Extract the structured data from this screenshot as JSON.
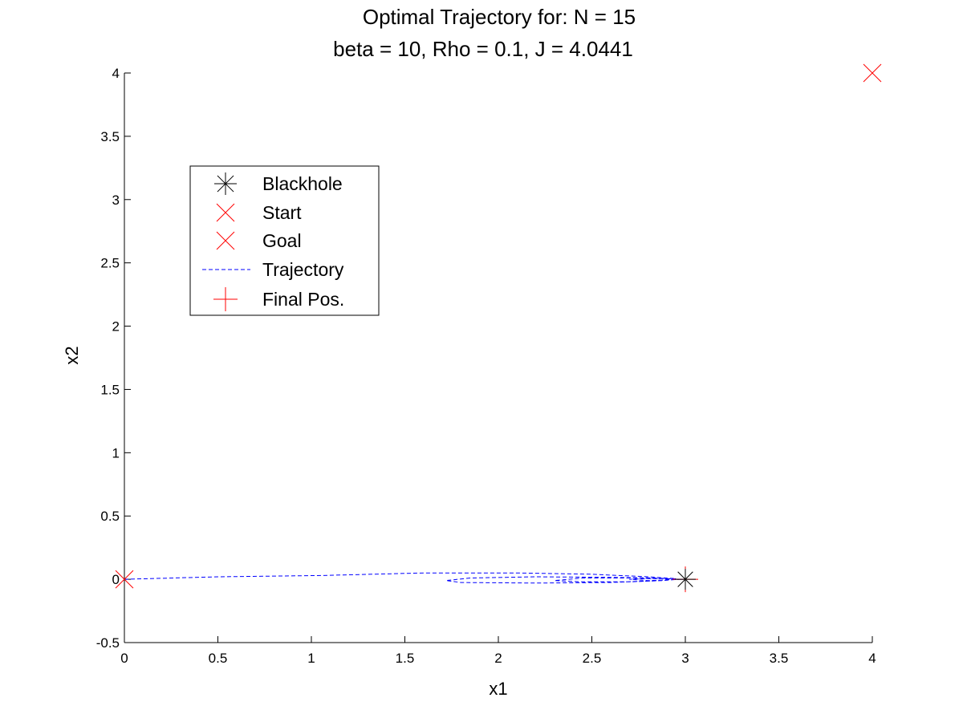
{
  "chart_data": {
    "type": "line",
    "title": "Optimal Trajectory for:  N = 15",
    "subtitle": "beta = 10, Rho = 0.1, J = 4.0441",
    "xlabel": "x1",
    "ylabel": "x2",
    "xlim": [
      0,
      4
    ],
    "ylim": [
      -0.5,
      4
    ],
    "xticks": [
      "0",
      "0.5",
      "1",
      "1.5",
      "2",
      "2.5",
      "3",
      "3.5",
      "4"
    ],
    "yticks": [
      "-0.5",
      "0",
      "0.5",
      "1",
      "1.5",
      "2",
      "2.5",
      "3",
      "3.5",
      "4"
    ],
    "grid": false,
    "legend_position": "upper-left",
    "legend": [
      {
        "label": "Blackhole",
        "marker": "asterisk",
        "color": "#000000"
      },
      {
        "label": "Start",
        "marker": "x",
        "color": "#ff0000"
      },
      {
        "label": "Goal",
        "marker": "x",
        "color": "#ff0000"
      },
      {
        "label": "Trajectory",
        "marker": "dashed-line",
        "color": "#0000ff"
      },
      {
        "label": "Final Pos.",
        "marker": "plus",
        "color": "#ff0000"
      }
    ],
    "blackhole": {
      "x": 3,
      "y": 0
    },
    "start": {
      "x": 0,
      "y": 0
    },
    "goal": {
      "x": 4,
      "y": 4
    },
    "final_pos": {
      "x": 3,
      "y": 0
    },
    "trajectory": {
      "x": [
        0,
        0.5,
        1.05,
        1.6,
        2.1,
        2.5,
        2.8,
        2.95,
        2.85,
        2.6,
        2.2,
        1.8,
        1.72,
        1.85,
        2.2,
        2.6,
        2.85,
        2.97,
        2.88,
        2.7,
        2.45,
        2.3,
        2.45,
        2.7,
        2.88,
        2.97,
        2.9,
        2.8,
        2.7,
        2.8,
        2.9,
        2.97,
        3.0
      ],
      "y": [
        0,
        0.02,
        0.03,
        0.05,
        0.05,
        0.04,
        0.02,
        0.005,
        -0.01,
        -0.025,
        -0.03,
        -0.025,
        -0.01,
        0.01,
        0.02,
        0.015,
        0.01,
        0.0,
        -0.01,
        -0.02,
        -0.02,
        -0.01,
        0.01,
        0.01,
        0.005,
        0.0,
        -0.005,
        -0.01,
        0.0,
        0.005,
        0.005,
        0.0,
        0.0
      ]
    }
  }
}
